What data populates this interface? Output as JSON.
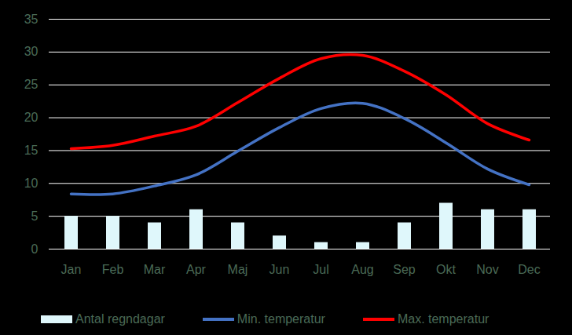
{
  "chart_data": {
    "type": "bar",
    "categories": [
      "Jan",
      "Feb",
      "Mar",
      "Apr",
      "Maj",
      "Jun",
      "Jul",
      "Aug",
      "Sep",
      "Okt",
      "Nov",
      "Dec"
    ],
    "series": [
      {
        "name": "Antal regndagar",
        "type": "bar",
        "color": "#dff7fb",
        "values": [
          5,
          5,
          4,
          6,
          4,
          2,
          1,
          1,
          4,
          7,
          6,
          6
        ]
      },
      {
        "name": "Min. temperatur",
        "type": "line",
        "color": "#4472c4",
        "values": [
          8.4,
          8.4,
          9.6,
          11.3,
          14.9,
          18.5,
          21.4,
          22.2,
          19.9,
          16.2,
          12.2,
          9.8
        ]
      },
      {
        "name": "Max. temperatur",
        "type": "line",
        "color": "#ff0000",
        "values": [
          15.3,
          15.8,
          17.2,
          18.7,
          22.3,
          26.0,
          29.0,
          29.5,
          27.1,
          23.5,
          19.1,
          16.6
        ]
      }
    ],
    "ylim": [
      0,
      35
    ],
    "yticks": [
      0,
      5,
      10,
      15,
      20,
      25,
      30,
      35
    ],
    "grid": true,
    "legend": "bottom"
  }
}
